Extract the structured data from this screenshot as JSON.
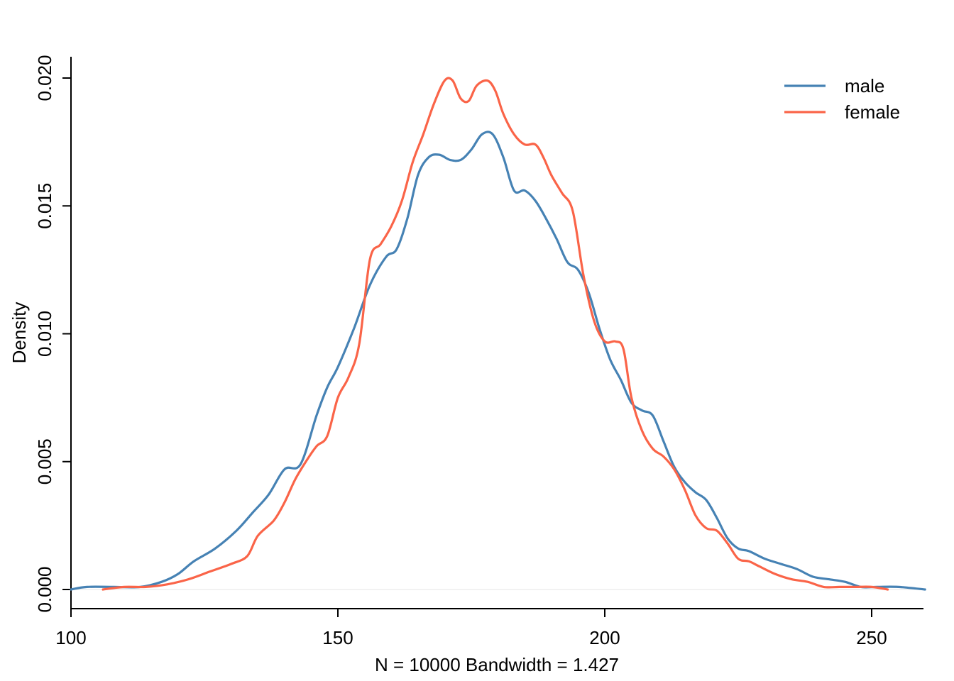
{
  "chart_data": {
    "type": "line",
    "title": "",
    "xlabel": "N = 10000   Bandwidth = 1.427",
    "ylabel": "Density",
    "xlim": [
      100,
      260
    ],
    "ylim": [
      0,
      0.0205
    ],
    "x_ticks": [
      100,
      150,
      200,
      250
    ],
    "y_ticks": [
      0.0,
      0.005,
      0.01,
      0.015,
      0.02
    ],
    "x_tick_labels": [
      "100",
      "150",
      "200",
      "250"
    ],
    "y_tick_labels": [
      "0.000",
      "0.005",
      "0.010",
      "0.015",
      "0.020"
    ],
    "grid": false,
    "legend": {
      "position": "top-right"
    },
    "series": [
      {
        "name": "male",
        "color": "#4682B4",
        "x": [
          100,
          103,
          108,
          113,
          117,
          120,
          123,
          127,
          131,
          134,
          137,
          140,
          143,
          146,
          148,
          150,
          153,
          156,
          159,
          161,
          163,
          165,
          167,
          169,
          171,
          173,
          175,
          177,
          179,
          181,
          183,
          185,
          187,
          189,
          191,
          193,
          195,
          197,
          199,
          201,
          203,
          205,
          207,
          209,
          211,
          213,
          215,
          217,
          219,
          221,
          223,
          225,
          227,
          230,
          233,
          236,
          239,
          242,
          245,
          248,
          251,
          255,
          260
        ],
        "y": [
          0.0,
          0.0001,
          0.0001,
          0.0001,
          0.0003,
          0.0006,
          0.0011,
          0.0016,
          0.0023,
          0.003,
          0.0037,
          0.0047,
          0.0049,
          0.0068,
          0.0079,
          0.0087,
          0.0102,
          0.0119,
          0.013,
          0.0133,
          0.0145,
          0.0162,
          0.0169,
          0.017,
          0.0168,
          0.0168,
          0.0172,
          0.0178,
          0.0178,
          0.0169,
          0.0156,
          0.0156,
          0.0152,
          0.0145,
          0.0137,
          0.0128,
          0.0125,
          0.0116,
          0.0102,
          0.009,
          0.0082,
          0.0073,
          0.007,
          0.0068,
          0.0058,
          0.0048,
          0.0042,
          0.0038,
          0.0035,
          0.0028,
          0.002,
          0.0016,
          0.0015,
          0.0012,
          0.001,
          0.0008,
          0.0005,
          0.0004,
          0.0003,
          0.0001,
          0.0001,
          0.0001,
          0.0
        ]
      },
      {
        "name": "female",
        "color": "#FA6448",
        "x": [
          106,
          110,
          114,
          118,
          122,
          126,
          130,
          133,
          135,
          138,
          140,
          142,
          144,
          146,
          148,
          150,
          152,
          154,
          156,
          158,
          160,
          162,
          164,
          166,
          168,
          170,
          171.5,
          173,
          174.5,
          176,
          178,
          179.5,
          181,
          183,
          185,
          187,
          188.5,
          190,
          192,
          194,
          196,
          198,
          200,
          202,
          203.5,
          205,
          207,
          209,
          211,
          213,
          215,
          217,
          219,
          221,
          223,
          225,
          227,
          229,
          232,
          235,
          238,
          241,
          244,
          247,
          250,
          253
        ],
        "y": [
          0.0,
          0.0001,
          0.0001,
          0.0002,
          0.0004,
          0.0007,
          0.001,
          0.0013,
          0.0021,
          0.0027,
          0.0034,
          0.0043,
          0.005,
          0.0056,
          0.006,
          0.0075,
          0.0083,
          0.0096,
          0.0129,
          0.0135,
          0.0142,
          0.0152,
          0.0167,
          0.0178,
          0.019,
          0.0199,
          0.0199,
          0.0192,
          0.0191,
          0.0197,
          0.0199,
          0.0195,
          0.0186,
          0.0178,
          0.0174,
          0.0174,
          0.0169,
          0.0162,
          0.0155,
          0.0148,
          0.0123,
          0.0105,
          0.0097,
          0.0097,
          0.0094,
          0.0075,
          0.0062,
          0.0055,
          0.0052,
          0.0047,
          0.0039,
          0.0029,
          0.0024,
          0.0023,
          0.0018,
          0.0012,
          0.0011,
          0.0009,
          0.0006,
          0.0004,
          0.0003,
          0.0001,
          0.0001,
          0.0001,
          0.0001,
          0.0
        ]
      }
    ]
  }
}
